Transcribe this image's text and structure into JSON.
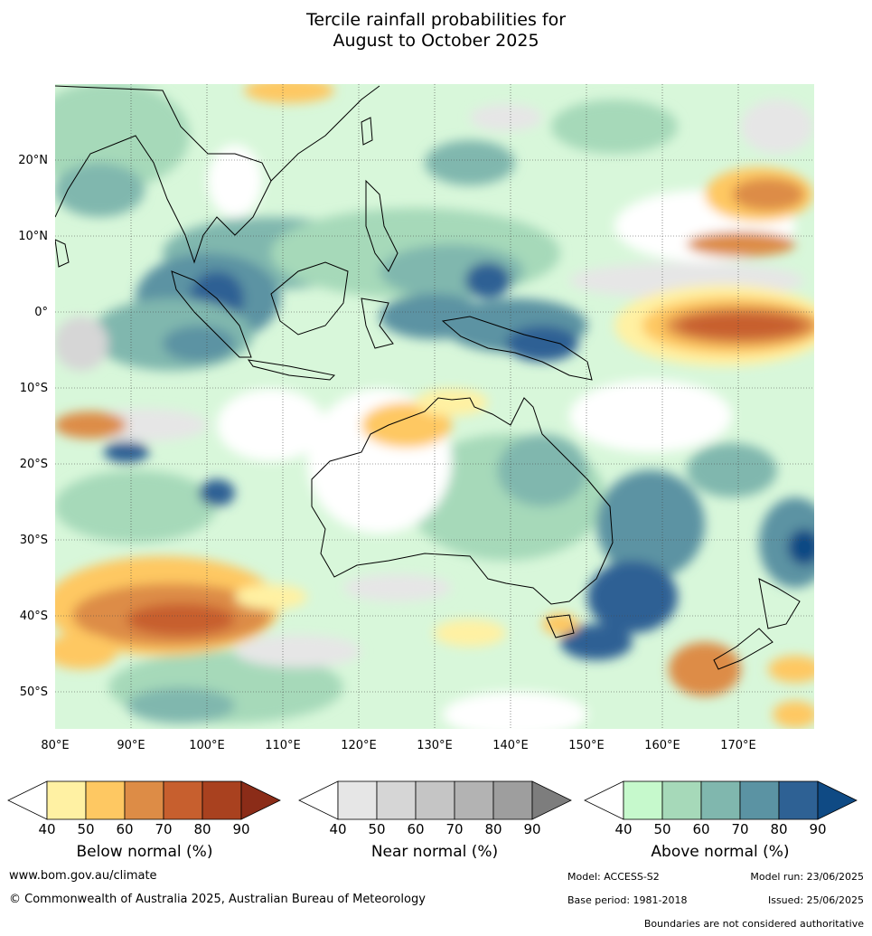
{
  "title_line1": "Tercile rainfall probabilities for",
  "title_line2": "August to October 2025",
  "map": {
    "lon_labels": [
      "80°E",
      "90°E",
      "100°E",
      "110°E",
      "120°E",
      "130°E",
      "140°E",
      "150°E",
      "160°E",
      "170°E"
    ],
    "lat_labels": [
      "20°N",
      "10°N",
      "0°",
      "10°S",
      "20°S",
      "30°S",
      "40°S",
      "50°S"
    ],
    "lon_range": [
      80,
      180
    ],
    "lat_range": [
      -55,
      30
    ],
    "gridlines": true
  },
  "colorbars": [
    {
      "label": "Below normal (%)",
      "ticks": [
        "40",
        "50",
        "60",
        "70",
        "80",
        "90"
      ],
      "colors": [
        "#fff1a3",
        "#fec862",
        "#dd8c46",
        "#c75f2e",
        "#a9411f",
        "#8b2c18"
      ]
    },
    {
      "label": "Near normal (%)",
      "ticks": [
        "40",
        "50",
        "60",
        "70",
        "80",
        "90"
      ],
      "colors": [
        "#e6e6e6",
        "#d6d6d6",
        "#c5c5c5",
        "#b3b3b3",
        "#9e9e9e",
        "#7d7d7d"
      ]
    },
    {
      "label": "Above normal (%)",
      "ticks": [
        "40",
        "50",
        "60",
        "70",
        "80",
        "90"
      ],
      "colors": [
        "#c6f9cc",
        "#a6d9b9",
        "#80b7ae",
        "#5b93a3",
        "#2e6194",
        "#0f4a84"
      ]
    }
  ],
  "footer": {
    "url": "www.bom.gov.au/climate",
    "copyright": "© Commonwealth of Australia 2025, Australian Bureau of Meteorology",
    "model": "Model: ACCESS-S2",
    "model_run": "Model run: 23/06/2025",
    "base_period": "Base period: 1981-2018",
    "issued": "Issued: 25/06/2025",
    "disclaimer": "Boundaries are not considered authoritative"
  }
}
